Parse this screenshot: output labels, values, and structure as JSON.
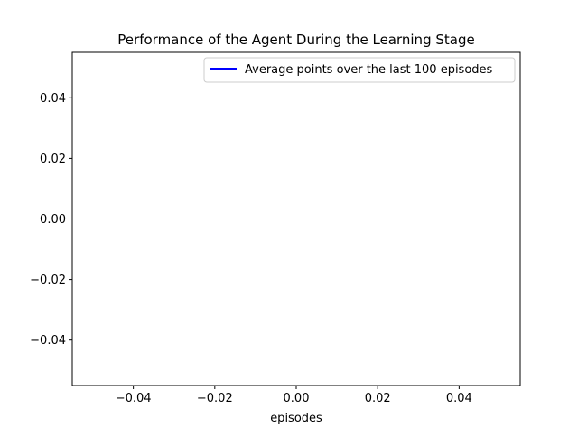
{
  "chart_data": {
    "type": "line",
    "title": "Performance of the Agent During the Learning Stage",
    "xlabel": "episodes",
    "ylabel": "",
    "xlim": [
      -0.055,
      0.055
    ],
    "ylim": [
      -0.055,
      0.055
    ],
    "x_ticks": [
      -0.04,
      -0.02,
      0.0,
      0.02,
      0.04
    ],
    "x_tick_labels": [
      "−0.04",
      "−0.02",
      "0.00",
      "0.02",
      "0.04"
    ],
    "y_ticks": [
      -0.04,
      -0.02,
      0.0,
      0.02,
      0.04
    ],
    "y_tick_labels": [
      "−0.04",
      "−0.02",
      "0.00",
      "0.02",
      "0.04"
    ],
    "grid": false,
    "legend_position": "upper right",
    "series": [
      {
        "name": "Average points over the last 100 episodes",
        "color": "#0000ff",
        "x": [],
        "y": []
      }
    ]
  }
}
